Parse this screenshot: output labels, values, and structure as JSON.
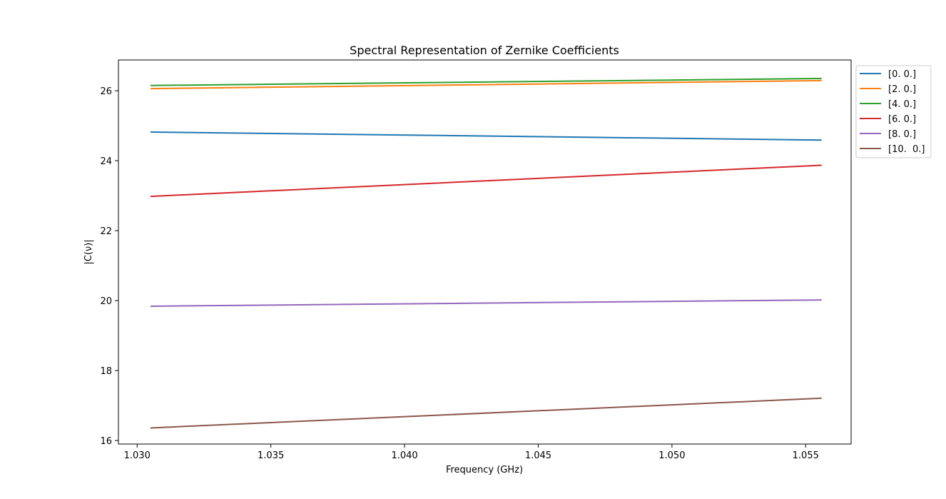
{
  "chart_data": {
    "type": "line",
    "title": "Spectral Representation of Zernike Coefficients",
    "xlabel": "Frequency (GHz)",
    "ylabel": "|C(ν)|",
    "xlim": [
      1.0293,
      1.0567
    ],
    "ylim": [
      15.9,
      26.88
    ],
    "xticks": [
      1.03,
      1.035,
      1.04,
      1.045,
      1.05,
      1.055
    ],
    "xtick_labels": [
      "1.030",
      "1.035",
      "1.040",
      "1.045",
      "1.050",
      "1.055"
    ],
    "yticks": [
      16,
      18,
      20,
      22,
      24,
      26
    ],
    "ytick_labels": [
      "16",
      "18",
      "20",
      "22",
      "24",
      "26"
    ],
    "grid": false,
    "legend_position": "outside-upper-right",
    "x": [
      1.0305,
      1.0556
    ],
    "series": [
      {
        "name": "[0. 0.]",
        "color": "#1f77b4",
        "values": [
          24.82,
          24.59
        ]
      },
      {
        "name": "[2. 0.]",
        "color": "#ff7f0e",
        "values": [
          26.06,
          26.29
        ]
      },
      {
        "name": "[4. 0.]",
        "color": "#2ca02c",
        "values": [
          26.15,
          26.35
        ]
      },
      {
        "name": "[6. 0.]",
        "color": "#d62728",
        "values": [
          22.98,
          23.87
        ]
      },
      {
        "name": "[8. 0.]",
        "color": "#9467bd",
        "values": [
          19.84,
          20.02
        ]
      },
      {
        "name": "[10.  0.]",
        "color": "#8c564b",
        "values": [
          16.36,
          17.21
        ]
      }
    ]
  }
}
